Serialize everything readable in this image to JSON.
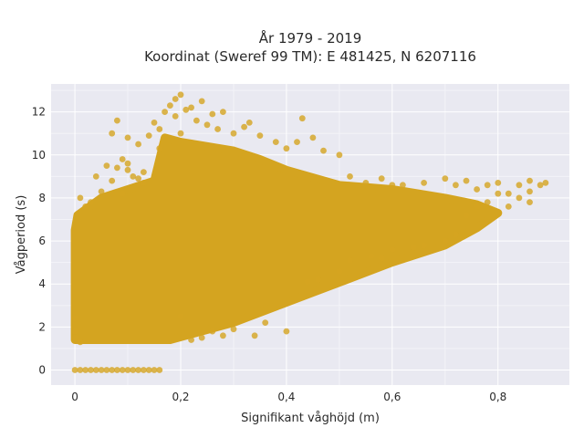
{
  "chart_data": {
    "type": "scatter",
    "title_line1": "År 1979 - 2019",
    "title_line2": "Koordinat (Sweref 99 TM): E 481425, N 6207116",
    "xlabel": "Signifikant våghöjd (m)",
    "ylabel": "Vågperiod (s)",
    "xlim": [
      -0.045,
      0.935
    ],
    "ylim": [
      -0.7,
      13.3
    ],
    "x_ticks": [
      0,
      0.2,
      0.4,
      0.6,
      0.8
    ],
    "x_tick_labels": [
      "0",
      "0,2",
      "0,4",
      "0,6",
      "0,8"
    ],
    "y_ticks": [
      0,
      2,
      4,
      6,
      8,
      10,
      12
    ],
    "y_tick_labels": [
      "0",
      "2",
      "4",
      "6",
      "8",
      "10",
      "12"
    ],
    "grid": true,
    "marker_color": "#D4A420",
    "background_color": "#E9E9F1",
    "bulk_envelope": [
      [
        0.0,
        1.4
      ],
      [
        0.005,
        1.4
      ],
      [
        0.18,
        1.4
      ],
      [
        0.3,
        2.2
      ],
      [
        0.45,
        3.6
      ],
      [
        0.6,
        5.0
      ],
      [
        0.7,
        5.8
      ],
      [
        0.76,
        6.6
      ],
      [
        0.8,
        7.3
      ],
      [
        0.76,
        7.7
      ],
      [
        0.7,
        8.0
      ],
      [
        0.6,
        8.4
      ],
      [
        0.5,
        8.6
      ],
      [
        0.4,
        9.3
      ],
      [
        0.35,
        9.8
      ],
      [
        0.3,
        10.2
      ],
      [
        0.2,
        10.6
      ],
      [
        0.17,
        10.8
      ],
      [
        0.15,
        8.8
      ],
      [
        0.1,
        8.4
      ],
      [
        0.05,
        8.0
      ],
      [
        0.005,
        7.2
      ],
      [
        0.0,
        6.5
      ]
    ],
    "points": [
      [
        0.0,
        0.0
      ],
      [
        0.02,
        0.0
      ],
      [
        0.04,
        0.0
      ],
      [
        0.06,
        0.0
      ],
      [
        0.08,
        0.0
      ],
      [
        0.1,
        0.0
      ],
      [
        0.12,
        0.0
      ],
      [
        0.14,
        0.0
      ],
      [
        0.16,
        0.0
      ],
      [
        0.01,
        0.0
      ],
      [
        0.03,
        0.0
      ],
      [
        0.05,
        0.0
      ],
      [
        0.07,
        0.0
      ],
      [
        0.09,
        0.0
      ],
      [
        0.11,
        0.0
      ],
      [
        0.13,
        0.0
      ],
      [
        0.15,
        0.0
      ],
      [
        0.0,
        2.4
      ],
      [
        0.0,
        1.8
      ],
      [
        0.0,
        1.5
      ],
      [
        0.01,
        1.3
      ],
      [
        0.07,
        11.0
      ],
      [
        0.08,
        11.6
      ],
      [
        0.1,
        10.8
      ],
      [
        0.1,
        9.6
      ],
      [
        0.12,
        10.5
      ],
      [
        0.13,
        9.2
      ],
      [
        0.14,
        10.9
      ],
      [
        0.15,
        11.5
      ],
      [
        0.16,
        11.2
      ],
      [
        0.18,
        12.3
      ],
      [
        0.19,
        12.6
      ],
      [
        0.2,
        12.8
      ],
      [
        0.21,
        12.1
      ],
      [
        0.22,
        12.2
      ],
      [
        0.23,
        11.6
      ],
      [
        0.25,
        11.4
      ],
      [
        0.28,
        12.0
      ],
      [
        0.32,
        11.3
      ],
      [
        0.3,
        11.0
      ],
      [
        0.35,
        10.9
      ],
      [
        0.38,
        10.6
      ],
      [
        0.42,
        10.6
      ],
      [
        0.43,
        11.7
      ],
      [
        0.45,
        10.8
      ],
      [
        0.47,
        10.2
      ],
      [
        0.5,
        10.0
      ],
      [
        0.52,
        9.0
      ],
      [
        0.55,
        8.7
      ],
      [
        0.58,
        8.9
      ],
      [
        0.6,
        8.6
      ],
      [
        0.62,
        8.6
      ],
      [
        0.66,
        8.7
      ],
      [
        0.7,
        8.9
      ],
      [
        0.72,
        8.6
      ],
      [
        0.74,
        8.8
      ],
      [
        0.76,
        8.4
      ],
      [
        0.78,
        8.6
      ],
      [
        0.8,
        8.7
      ],
      [
        0.82,
        8.2
      ],
      [
        0.84,
        8.6
      ],
      [
        0.86,
        8.8
      ],
      [
        0.88,
        8.6
      ],
      [
        0.89,
        8.7
      ],
      [
        0.86,
        8.3
      ],
      [
        0.74,
        7.2
      ],
      [
        0.76,
        7.6
      ],
      [
        0.78,
        7.8
      ],
      [
        0.8,
        8.2
      ],
      [
        0.84,
        8.0
      ],
      [
        0.86,
        7.8
      ],
      [
        0.82,
        7.6
      ],
      [
        0.7,
        6.0
      ],
      [
        0.72,
        6.3
      ],
      [
        0.66,
        5.8
      ],
      [
        0.64,
        5.7
      ],
      [
        0.6,
        5.6
      ],
      [
        0.58,
        5.2
      ],
      [
        0.56,
        5.3
      ],
      [
        0.52,
        5.1
      ],
      [
        0.5,
        4.6
      ],
      [
        0.46,
        4.2
      ],
      [
        0.44,
        4.1
      ],
      [
        0.4,
        1.8
      ],
      [
        0.36,
        2.2
      ],
      [
        0.34,
        1.6
      ],
      [
        0.3,
        1.9
      ],
      [
        0.28,
        1.6
      ],
      [
        0.26,
        1.8
      ],
      [
        0.24,
        1.5
      ],
      [
        0.22,
        1.4
      ],
      [
        0.2,
        2.5
      ],
      [
        0.12,
        8.9
      ],
      [
        0.1,
        9.3
      ],
      [
        0.09,
        8.2
      ],
      [
        0.06,
        9.5
      ],
      [
        0.05,
        8.3
      ],
      [
        0.04,
        9.0
      ],
      [
        0.03,
        7.8
      ],
      [
        0.02,
        7.6
      ],
      [
        0.01,
        8.0
      ],
      [
        0.09,
        9.8
      ],
      [
        0.11,
        9.0
      ],
      [
        0.13,
        8.7
      ],
      [
        0.08,
        9.4
      ],
      [
        0.07,
        8.8
      ],
      [
        0.26,
        11.9
      ],
      [
        0.2,
        11.0
      ],
      [
        0.17,
        12.0
      ],
      [
        0.16,
        10.3
      ],
      [
        0.19,
        11.8
      ],
      [
        0.24,
        12.5
      ],
      [
        0.27,
        11.2
      ],
      [
        0.33,
        11.5
      ],
      [
        0.4,
        10.3
      ]
    ]
  }
}
